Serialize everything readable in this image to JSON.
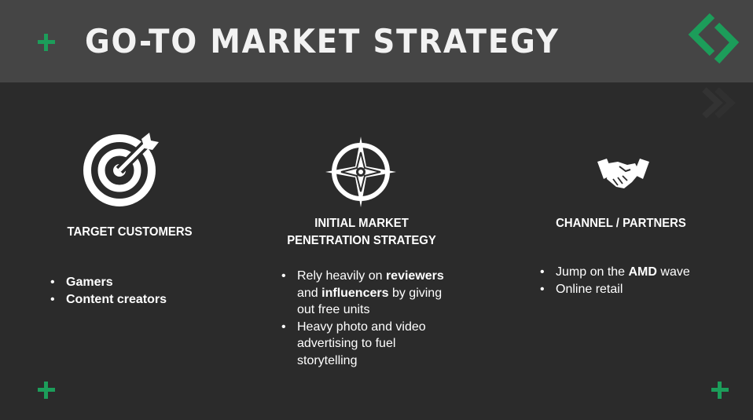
{
  "slide": {
    "title": "GO-TO MARKET STRATEGY",
    "accent_color": "#1c9d5a",
    "background_color": "#2b2b2b",
    "header_color": "#454545"
  },
  "columns": [
    {
      "icon": "target-icon",
      "title": "TARGET CUSTOMERS",
      "bullets": [
        [
          {
            "t": "Gamers",
            "b": true
          }
        ],
        [
          {
            "t": "Content creators",
            "b": true
          }
        ]
      ]
    },
    {
      "icon": "compass-icon",
      "title_line1": "INITIAL MARKET",
      "title_line2": "PENETRATION STRATEGY",
      "bullets": [
        [
          {
            "t": "Rely heavily on ",
            "b": false
          },
          {
            "t": "reviewers",
            "b": true
          },
          {
            "t": " and ",
            "b": false
          },
          {
            "t": "influencers",
            "b": true
          },
          {
            "t": " by giving out free units",
            "b": false
          }
        ],
        [
          {
            "t": "Heavy photo and video advertising to fuel storytelling",
            "b": false
          }
        ]
      ]
    },
    {
      "icon": "handshake-icon",
      "title": "CHANNEL / PARTNERS",
      "bullets": [
        [
          {
            "t": "Jump on the ",
            "b": false
          },
          {
            "t": "AMD",
            "b": true
          },
          {
            "t": " wave",
            "b": false
          }
        ],
        [
          {
            "t": "Online retail",
            "b": false
          }
        ]
      ]
    }
  ]
}
